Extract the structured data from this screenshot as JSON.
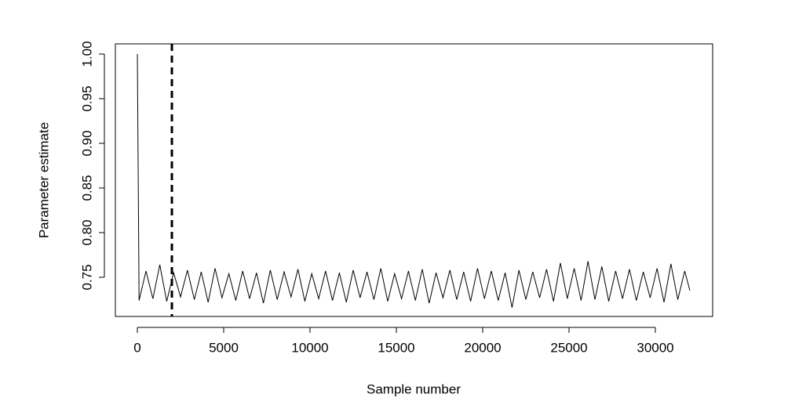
{
  "chart_data": {
    "type": "line",
    "x_label": "Sample number",
    "y_label": "Parameter estimate",
    "xlim": [
      -1273,
      33318
    ],
    "ylim": [
      0.7061,
      1.0114
    ],
    "xticks": [
      0,
      5000,
      10000,
      15000,
      20000,
      25000,
      30000
    ],
    "yticks": [
      0.75,
      {
        "value": 0.8,
        "label": "0.80"
      },
      0.85,
      {
        "value": 0.9,
        "label": "0.90"
      },
      0.95,
      {
        "value": 1.0,
        "label": "1.00"
      }
    ],
    "vline": 2000,
    "series": [
      {
        "color": "#000000",
        "x": [
          0,
          100,
          500,
          900,
          1300,
          1700,
          2100,
          2500,
          2900,
          3300,
          3700,
          4100,
          4500,
          4900,
          5300,
          5700,
          6100,
          6500,
          6900,
          7300,
          7700,
          8100,
          8500,
          8900,
          9300,
          9700,
          10100,
          10500,
          10900,
          11300,
          11700,
          12100,
          12500,
          12900,
          13300,
          13700,
          14100,
          14500,
          14900,
          15300,
          15700,
          16100,
          16500,
          16900,
          17300,
          17700,
          18100,
          18500,
          18900,
          19300,
          19700,
          20100,
          20500,
          20900,
          21300,
          21700,
          22100,
          22500,
          22900,
          23300,
          23700,
          24100,
          24500,
          24900,
          25300,
          25700,
          26100,
          26500,
          26900,
          27300,
          27700,
          28100,
          28500,
          28900,
          29300,
          29700,
          30100,
          30500,
          30900,
          31300,
          31700,
          32000
        ],
        "values": [
          1.0,
          0.724,
          0.757,
          0.726,
          0.764,
          0.723,
          0.755,
          0.728,
          0.758,
          0.725,
          0.756,
          0.722,
          0.76,
          0.727,
          0.754,
          0.724,
          0.757,
          0.726,
          0.755,
          0.721,
          0.758,
          0.725,
          0.756,
          0.728,
          0.759,
          0.723,
          0.754,
          0.726,
          0.757,
          0.724,
          0.755,
          0.722,
          0.758,
          0.727,
          0.756,
          0.725,
          0.76,
          0.723,
          0.754,
          0.726,
          0.757,
          0.724,
          0.759,
          0.721,
          0.755,
          0.727,
          0.758,
          0.725,
          0.756,
          0.723,
          0.76,
          0.726,
          0.757,
          0.724,
          0.755,
          0.716,
          0.758,
          0.725,
          0.756,
          0.727,
          0.759,
          0.723,
          0.766,
          0.726,
          0.76,
          0.724,
          0.768,
          0.725,
          0.762,
          0.723,
          0.757,
          0.726,
          0.759,
          0.724,
          0.756,
          0.727,
          0.76,
          0.722,
          0.765,
          0.725,
          0.757,
          0.735
        ]
      }
    ]
  }
}
